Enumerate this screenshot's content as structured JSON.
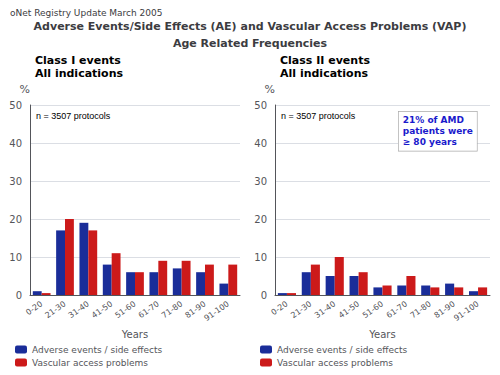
{
  "title": "Adverse Events/Side Effects (AE) and Vascular Access Problems (VAP)",
  "subtitle": "Age Related Frequencies",
  "annotations": [
    "oNet Registry Update March 2005"
  ],
  "chart_data": [
    {
      "type": "bar",
      "title": "Class I events",
      "subtitle": "All indications",
      "categories": [
        "0-20",
        "21-30",
        "31-40",
        "41-50",
        "51-60",
        "61-70",
        "71-80",
        "81-90",
        "91-100"
      ],
      "series": [
        {
          "name": "Adverse events / side effects",
          "color": "#1a2d99",
          "values": [
            1,
            17,
            19,
            8,
            6,
            6,
            7,
            6,
            3
          ]
        },
        {
          "name": "Vascular access problems",
          "color": "#cc1a1a",
          "values": [
            0.5,
            20,
            17,
            11,
            6,
            9,
            9,
            8,
            8
          ]
        }
      ],
      "xlabel": "Years",
      "ylabel": "%",
      "ylim": [
        0,
        50
      ],
      "yticks": [
        0,
        10,
        20,
        30,
        40,
        50
      ],
      "grid": true,
      "legend": "lower left",
      "annotations": [
        "n = 3507 protocols"
      ]
    },
    {
      "type": "bar",
      "title": "Class II events",
      "subtitle": "All indications",
      "categories": [
        "0-20",
        "21-30",
        "31-40",
        "41-50",
        "51-60",
        "61-70",
        "71-80",
        "81-90",
        "91-100"
      ],
      "series": [
        {
          "name": "Adverse events / side effects",
          "color": "#1a2d99",
          "values": [
            0.5,
            6,
            5,
            5,
            2,
            2.5,
            2.5,
            3,
            1
          ]
        },
        {
          "name": "Vascular access problems",
          "color": "#cc1a1a",
          "values": [
            0.5,
            8,
            10,
            6,
            2.5,
            5,
            2,
            2,
            2
          ]
        }
      ],
      "xlabel": "Years",
      "ylabel": "%",
      "ylim": [
        0,
        50
      ],
      "yticks": [
        0,
        10,
        20,
        30,
        40,
        50
      ],
      "grid": true,
      "legend": "lower left",
      "annotations": [
        "n = 3507 protocols",
        "21% of AMD\npatients were\n≥ 80 years"
      ]
    }
  ]
}
